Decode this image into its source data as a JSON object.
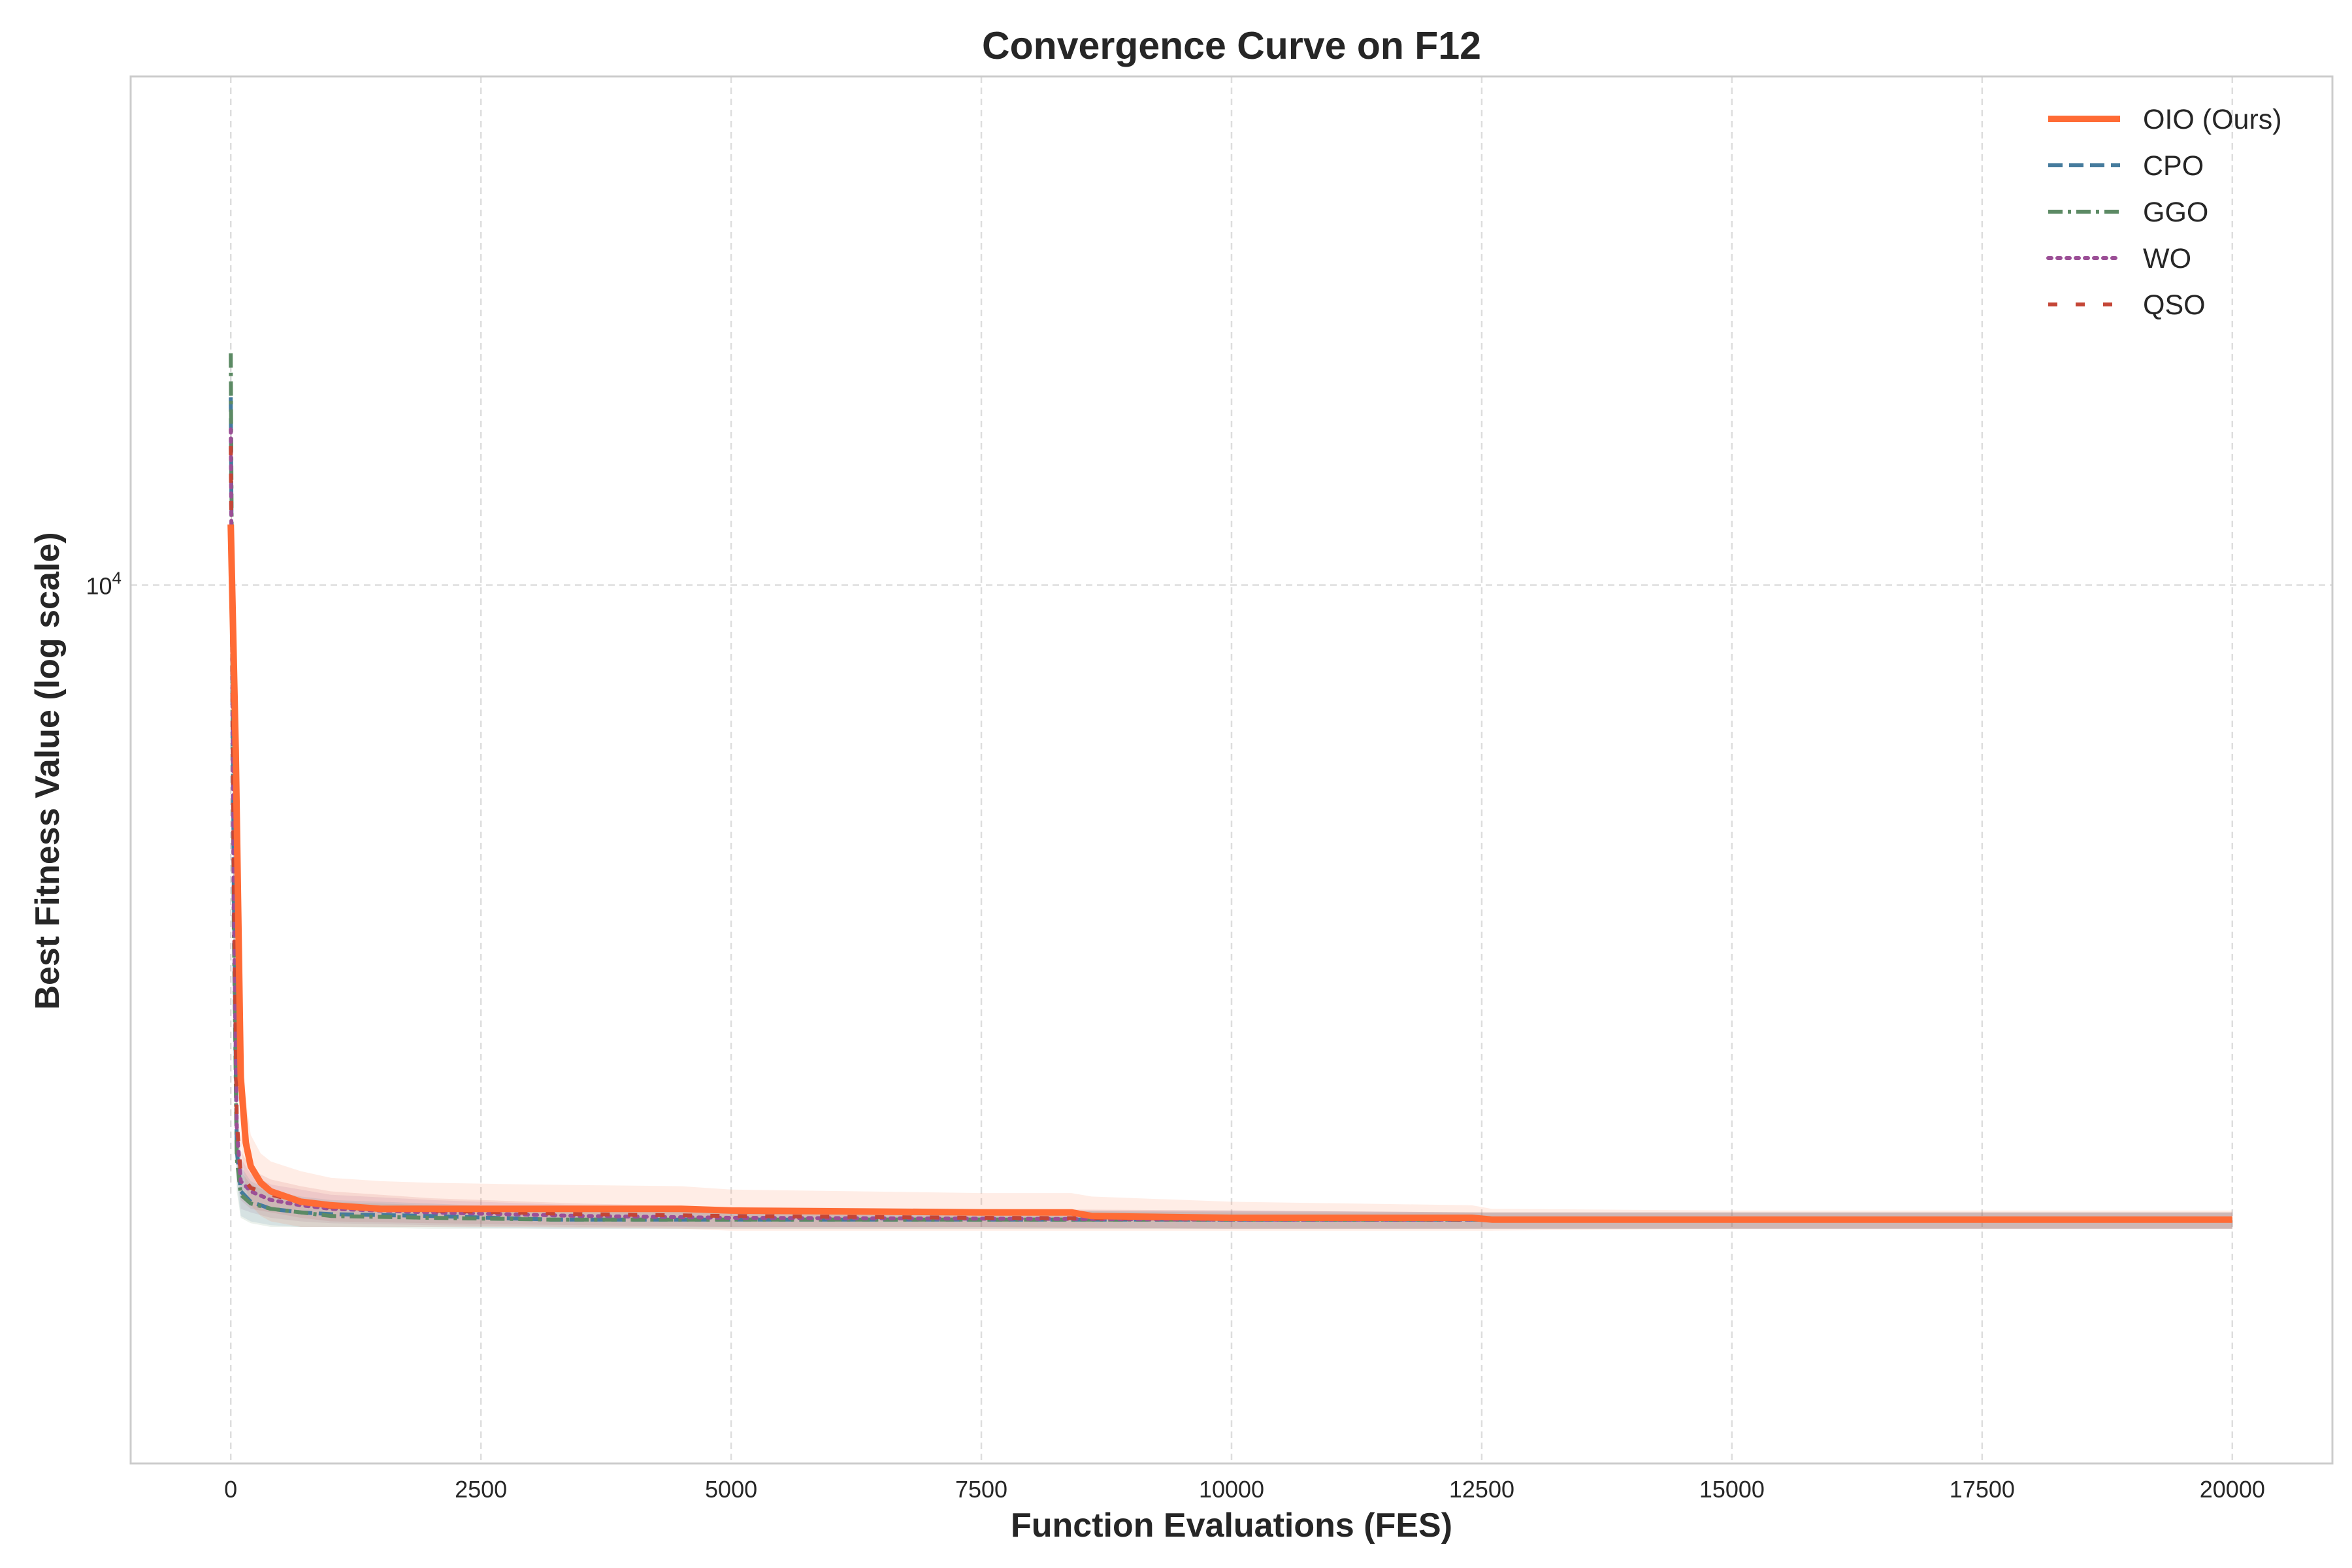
{
  "chart_data": {
    "type": "line",
    "title": "Convergence Curve on F12",
    "xlabel": "Function Evaluations (FES)",
    "ylabel": "Best Fitness Value (log scale)",
    "xlim": [
      -1000,
      21000
    ],
    "ylim": [
      1500,
      30000
    ],
    "y_scale": "log",
    "x_ticks": [
      0,
      2500,
      5000,
      7500,
      10000,
      12500,
      15000,
      17500,
      20000
    ],
    "x_tick_labels": [
      "0",
      "2500",
      "5000",
      "7500",
      "10000",
      "12500",
      "15000",
      "17500",
      "20000"
    ],
    "y_ticks": [
      10000
    ],
    "y_tick_labels": [
      {
        "base": "10",
        "exp": "4"
      }
    ],
    "grid": true,
    "legend_position": "top-right",
    "series": [
      {
        "name": "OIO (Ours)",
        "color": "#FF6B35",
        "style": "solid",
        "x": [
          0,
          50,
          100,
          150,
          200,
          300,
          400,
          500,
          700,
          1000,
          1500,
          2000,
          3000,
          4500,
          5000,
          7500,
          8400,
          8600,
          10000,
          12400,
          12600,
          15000,
          17500,
          20000
        ],
        "y": [
          11400,
          7000,
          3450,
          3000,
          2850,
          2750,
          2700,
          2680,
          2640,
          2620,
          2600,
          2600,
          2600,
          2600,
          2590,
          2580,
          2580,
          2560,
          2550,
          2550,
          2540,
          2540,
          2540,
          2540
        ],
        "band_upper": [
          12500,
          8000,
          3900,
          3300,
          3050,
          2930,
          2880,
          2860,
          2820,
          2780,
          2760,
          2750,
          2740,
          2730,
          2710,
          2690,
          2690,
          2670,
          2640,
          2620,
          2600,
          2590,
          2590,
          2590
        ],
        "band_lower": [
          10500,
          5000,
          3000,
          2720,
          2620,
          2560,
          2530,
          2520,
          2500,
          2500,
          2500,
          2500,
          2500,
          2490,
          2480,
          2480,
          2480,
          2480,
          2480,
          2480,
          2480,
          2490,
          2490,
          2490
        ]
      },
      {
        "name": "CPO",
        "color": "#457B9D",
        "style": "dashed",
        "x": [
          0,
          30,
          60,
          100,
          200,
          400,
          700,
          1000,
          2000,
          3200,
          5000,
          7500,
          10000,
          12500,
          15000,
          17500,
          20000
        ],
        "y": [
          15000,
          5200,
          2950,
          2700,
          2640,
          2600,
          2580,
          2570,
          2560,
          2540,
          2540,
          2540,
          2540,
          2540,
          2540,
          2540,
          2540
        ],
        "band_upper": [
          17000,
          6200,
          3200,
          2850,
          2760,
          2700,
          2670,
          2650,
          2630,
          2600,
          2590,
          2590,
          2590,
          2580,
          2580,
          2580,
          2580
        ],
        "band_lower": [
          13000,
          4300,
          2750,
          2560,
          2530,
          2510,
          2500,
          2500,
          2500,
          2490,
          2490,
          2490,
          2490,
          2490,
          2490,
          2490,
          2490
        ]
      },
      {
        "name": "GGO",
        "color": "#5C8A64",
        "style": "dashdot",
        "x": [
          0,
          30,
          60,
          100,
          200,
          400,
          700,
          1000,
          2000,
          3200,
          5000,
          7500,
          10000,
          12500,
          15000,
          17500,
          20000
        ],
        "y": [
          16500,
          4800,
          2900,
          2680,
          2630,
          2600,
          2580,
          2560,
          2550,
          2540,
          2540,
          2540,
          2540,
          2540,
          2540,
          2540,
          2540
        ],
        "band_upper": [
          19000,
          6000,
          3200,
          2820,
          2740,
          2690,
          2660,
          2640,
          2620,
          2590,
          2590,
          2590,
          2580,
          2580,
          2580,
          2580,
          2580
        ],
        "band_lower": [
          14000,
          3900,
          2700,
          2550,
          2520,
          2500,
          2500,
          2500,
          2490,
          2490,
          2490,
          2490,
          2490,
          2490,
          2490,
          2490,
          2490
        ]
      },
      {
        "name": "WO",
        "color": "#9B4F96",
        "style": "dotted",
        "x": [
          0,
          30,
          60,
          100,
          200,
          400,
          700,
          1000,
          2000,
          3500,
          5000,
          7500,
          10000,
          12500,
          15000,
          17500,
          20000
        ],
        "y": [
          14000,
          5000,
          3100,
          2760,
          2700,
          2650,
          2620,
          2600,
          2580,
          2560,
          2550,
          2545,
          2540,
          2540,
          2540,
          2540,
          2540
        ],
        "band_upper": [
          16000,
          6000,
          3350,
          2900,
          2800,
          2740,
          2710,
          2680,
          2650,
          2620,
          2600,
          2590,
          2590,
          2580,
          2580,
          2580,
          2580
        ],
        "band_lower": [
          12000,
          4200,
          2850,
          2600,
          2580,
          2550,
          2530,
          2520,
          2510,
          2500,
          2500,
          2500,
          2490,
          2490,
          2490,
          2490,
          2490
        ]
      },
      {
        "name": "QSO",
        "color": "#C44536",
        "style": "loosedash",
        "x": [
          0,
          30,
          60,
          100,
          200,
          400,
          700,
          1000,
          2000,
          3500,
          5000,
          7500,
          10000,
          12500,
          15000,
          17500,
          20000
        ],
        "y": [
          13500,
          5300,
          3150,
          2800,
          2720,
          2680,
          2640,
          2610,
          2590,
          2570,
          2560,
          2550,
          2545,
          2540,
          2540,
          2540,
          2540
        ],
        "band_upper": [
          15500,
          6300,
          3400,
          2950,
          2830,
          2770,
          2730,
          2700,
          2660,
          2630,
          2610,
          2600,
          2590,
          2580,
          2580,
          2580,
          2580
        ],
        "band_lower": [
          11500,
          4400,
          2900,
          2650,
          2600,
          2580,
          2550,
          2530,
          2520,
          2510,
          2500,
          2500,
          2490,
          2490,
          2490,
          2490,
          2490
        ]
      }
    ]
  }
}
